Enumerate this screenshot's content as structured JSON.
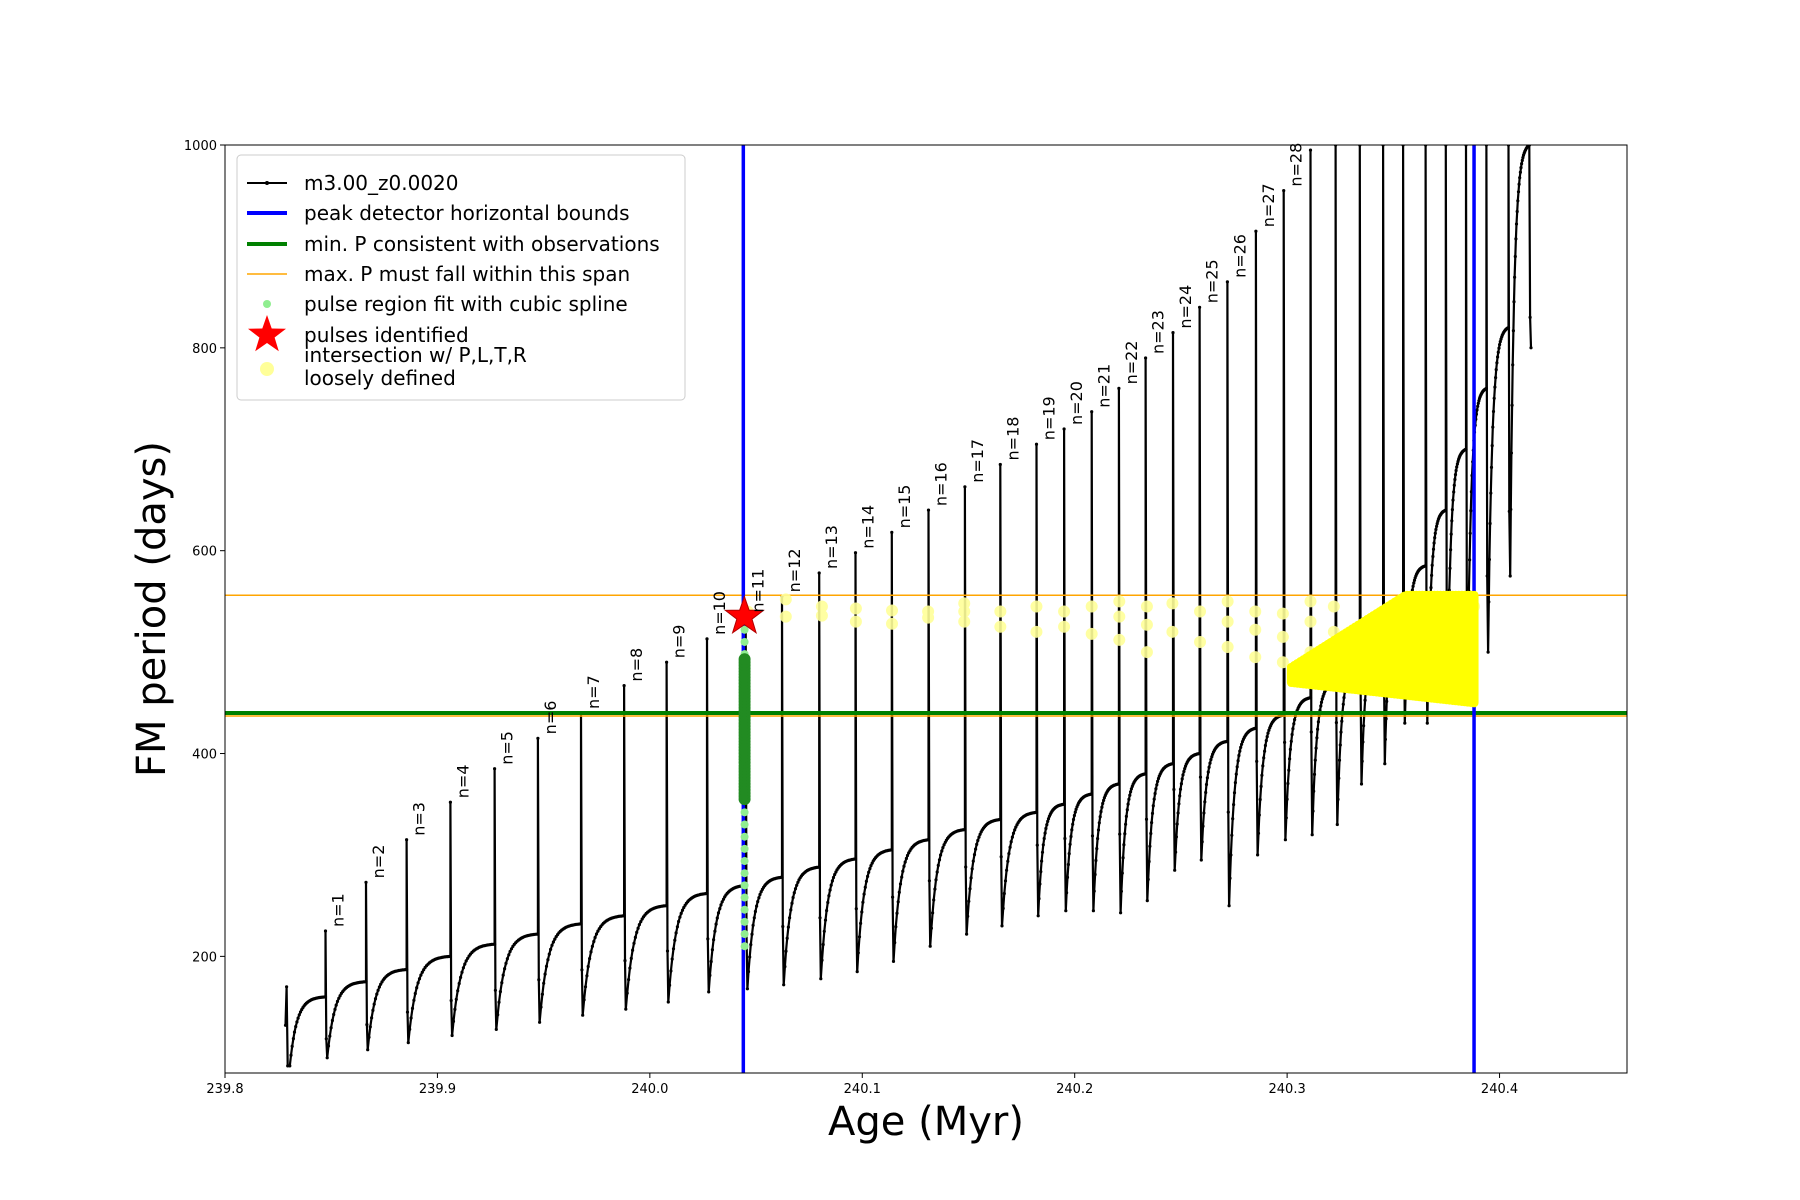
{
  "chart_data": {
    "type": "line",
    "xlabel": "Age (Myr)",
    "ylabel": "FM period (days)",
    "xlim": [
      239.8,
      240.46
    ],
    "ylim": [
      85,
      1000
    ],
    "x_ticks": [
      "239.8",
      "239.9",
      "240.0",
      "240.1",
      "240.2",
      "240.3",
      "240.4"
    ],
    "x_tick_values": [
      239.8,
      239.9,
      240.0,
      240.1,
      240.2,
      240.3,
      240.4
    ],
    "y_ticks": [
      "200",
      "400",
      "600",
      "800",
      "1000"
    ],
    "y_tick_values": [
      200,
      400,
      600,
      800,
      1000
    ],
    "grid": false,
    "legend_position": "upper-left",
    "legend": [
      {
        "label": "m3.00_z0.0020",
        "marker": "line-dot",
        "color": "#000000"
      },
      {
        "label": "peak detector horizontal bounds",
        "marker": "line",
        "color": "#0000ff"
      },
      {
        "label": "min. P consistent with observations",
        "marker": "line",
        "color": "#008000"
      },
      {
        "label": "max. P must fall within this span",
        "marker": "thin-line",
        "color": "#ffa500"
      },
      {
        "label": "pulse region fit with cubic spline",
        "marker": "dot",
        "color": "#90ee90"
      },
      {
        "label": "pulses identified",
        "marker": "star",
        "color": "#ff0000"
      },
      {
        "label": "intersection w/ P,L,T,R",
        "label2": "loosely defined",
        "marker": "big-dot",
        "color": "#ffff99"
      }
    ],
    "vertical_lines": [
      240.044,
      240.388
    ],
    "horizontal_lines": {
      "min_period": 440,
      "max_span": [
        437,
        556
      ]
    },
    "pulses": {
      "x": [
        239.8473,
        239.8664,
        239.8855,
        239.9061,
        239.9269,
        239.9473,
        239.9676,
        239.9879,
        240.0079,
        240.0269,
        240.0451,
        240.0622,
        240.0797,
        240.0968,
        240.1139,
        240.1312,
        240.1483,
        240.165,
        240.182,
        240.195,
        240.208,
        240.2208,
        240.2334,
        240.2463,
        240.2588,
        240.2719,
        240.2853,
        240.2984,
        240.311,
        240.3228,
        240.3342,
        240.3452,
        240.3546,
        240.3652,
        240.3747,
        240.3842,
        240.3938,
        240.4042,
        240.414
      ],
      "peak": [
        225,
        273,
        315,
        352,
        385,
        415,
        440,
        467,
        490,
        513,
        535,
        555,
        578,
        598,
        618,
        640,
        663,
        685,
        705,
        720,
        737,
        760,
        790,
        815,
        840,
        865,
        915,
        955,
        995,
        1000,
        1000,
        1000,
        1000,
        1000,
        1000,
        1000,
        1000,
        1000,
        1000
      ],
      "dip": [
        100,
        108,
        115,
        122,
        128,
        135,
        142,
        148,
        155,
        165,
        168,
        172,
        178,
        185,
        195,
        210,
        222,
        230,
        240,
        245,
        245,
        243,
        255,
        285,
        295,
        250,
        300,
        315,
        320,
        330,
        370,
        390,
        430,
        430,
        470,
        480,
        500,
        575,
        800
      ],
      "plateau": [
        160,
        175,
        187,
        200,
        212,
        222,
        232,
        240,
        250,
        262,
        270,
        278,
        288,
        296,
        305,
        315,
        325,
        335,
        342,
        350,
        360,
        370,
        380,
        390,
        400,
        412,
        425,
        438,
        455,
        470,
        490,
        515,
        545,
        585,
        640,
        700,
        760,
        820,
        1000
      ],
      "labels": [
        "n=1",
        "n=2",
        "n=3",
        "n=4",
        "n=5",
        "n=6",
        "n=7",
        "n=8",
        "n=9",
        "n=10",
        "n=11",
        "n=12",
        "n=13",
        "n=14",
        "n=15",
        "n=16",
        "n=17",
        "n=18",
        "n=19",
        "n=20",
        "n=21",
        "n=22",
        "n=23",
        "n=24",
        "n=25",
        "n=26",
        "n=27",
        "n=28"
      ]
    },
    "track_start": {
      "x": 239.8285,
      "low": 92,
      "high": 170
    },
    "spline_fit_region": {
      "x": 240.0446,
      "range": [
        210,
        540
      ]
    },
    "pulse_identified": {
      "x": 240.0445,
      "y": 535
    },
    "intersection_points": [
      [
        240.046,
        540
      ],
      [
        240.064,
        535
      ],
      [
        240.064,
        552
      ],
      [
        240.081,
        545
      ],
      [
        240.081,
        536
      ],
      [
        240.097,
        530
      ],
      [
        240.097,
        543
      ],
      [
        240.114,
        528
      ],
      [
        240.114,
        541
      ],
      [
        240.131,
        540
      ],
      [
        240.131,
        534
      ],
      [
        240.148,
        530
      ],
      [
        240.148,
        548
      ],
      [
        240.148,
        540
      ],
      [
        240.165,
        525
      ],
      [
        240.165,
        540
      ],
      [
        240.182,
        520
      ],
      [
        240.182,
        545
      ],
      [
        240.195,
        525
      ],
      [
        240.195,
        540
      ],
      [
        240.208,
        518
      ],
      [
        240.208,
        545
      ],
      [
        240.221,
        512
      ],
      [
        240.221,
        535
      ],
      [
        240.221,
        550
      ],
      [
        240.234,
        500
      ],
      [
        240.234,
        527
      ],
      [
        240.234,
        545
      ],
      [
        240.246,
        520
      ],
      [
        240.246,
        548
      ],
      [
        240.259,
        510
      ],
      [
        240.259,
        540
      ],
      [
        240.272,
        505
      ],
      [
        240.272,
        530
      ],
      [
        240.272,
        550
      ],
      [
        240.285,
        495
      ],
      [
        240.285,
        522
      ],
      [
        240.285,
        540
      ],
      [
        240.298,
        490
      ],
      [
        240.298,
        515
      ],
      [
        240.298,
        538
      ],
      [
        240.311,
        500
      ],
      [
        240.311,
        530
      ],
      [
        240.311,
        550
      ],
      [
        240.322,
        520
      ],
      [
        240.322,
        545
      ],
      [
        240.334,
        515
      ],
      [
        240.345,
        540
      ],
      [
        240.355,
        530
      ],
      [
        240.365,
        525
      ],
      [
        240.375,
        520
      ],
      [
        240.385,
        515
      ],
      [
        240.388,
        545
      ]
    ],
    "intersection_cluster": {
      "x_range": [
        240.302,
        240.388
      ],
      "lower_start": 470,
      "lower_end": 450,
      "upper_start": 485,
      "upper_end": 556
    }
  }
}
